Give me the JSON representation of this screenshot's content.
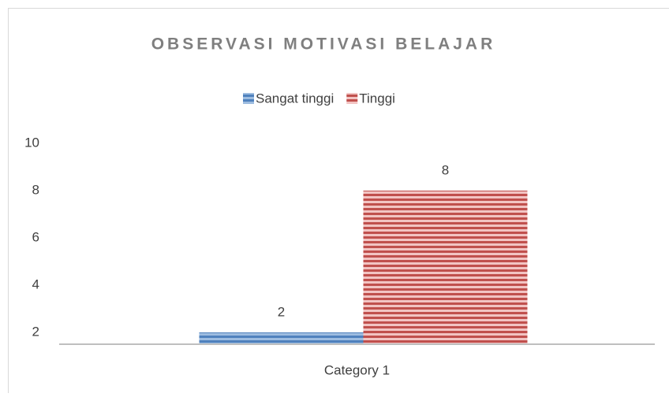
{
  "chart_data": {
    "type": "bar",
    "title": "OBSERVASI MOTIVASI BELAJAR",
    "categories": [
      "Category 1"
    ],
    "series": [
      {
        "name": "Sangat tinggi",
        "color": "#4f81bd",
        "values": [
          2
        ]
      },
      {
        "name": "Tinggi",
        "color": "#c0504d",
        "values": [
          8
        ]
      }
    ],
    "ylim": [
      1.5,
      10
    ],
    "yticks": [
      2,
      4,
      6,
      8,
      10
    ],
    "grid": false,
    "legend": "top"
  }
}
